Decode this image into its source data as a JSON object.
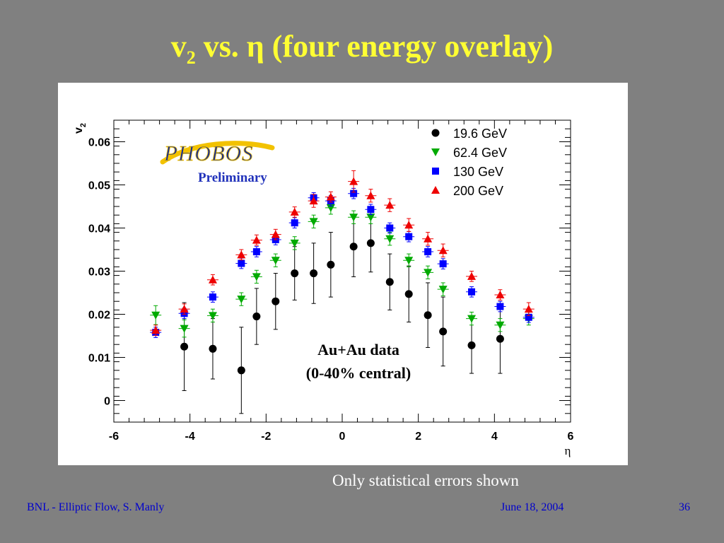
{
  "slide": {
    "title_v": "v",
    "title_sub": "2",
    "title_rest": " vs. η (four energy overlay)",
    "note": "Only statistical errors shown",
    "footer_left": "BNL - Elliptic Flow,  S. Manly",
    "footer_date": "June 18, 2004",
    "footer_page": "36"
  },
  "chart_data": {
    "type": "scatter",
    "title": "",
    "xlabel": "η",
    "ylabel": "v",
    "ylabel_sub": "2",
    "xlim": [
      -6,
      6
    ],
    "ylim": [
      -0.005,
      0.065
    ],
    "xticks": [
      -6,
      -4,
      -2,
      0,
      2,
      4,
      6
    ],
    "yticks": [
      0,
      0.01,
      0.02,
      0.03,
      0.04,
      0.05,
      0.06
    ],
    "ytick_labels": [
      "0",
      "0.01",
      "0.02",
      "0.03",
      "0.04",
      "0.05",
      "0.06"
    ],
    "grid": false,
    "legend_position": "top-right",
    "logo_text": "PHOBOS",
    "annotations": [
      "Preliminary",
      "Au+Au data",
      "(0-40% central)"
    ],
    "series": [
      {
        "name": "19.6 GeV",
        "marker": "circle",
        "color": "#000000",
        "points": [
          {
            "x": -4.15,
            "y": 0.0125,
            "err": 0.0102
          },
          {
            "x": -3.4,
            "y": 0.012,
            "err": 0.007
          },
          {
            "x": -2.65,
            "y": 0.007,
            "err": 0.01
          },
          {
            "x": -2.25,
            "y": 0.0195,
            "err": 0.0065
          },
          {
            "x": -1.75,
            "y": 0.023,
            "err": 0.0065
          },
          {
            "x": -1.25,
            "y": 0.0295,
            "err": 0.0062
          },
          {
            "x": -0.75,
            "y": 0.0295,
            "err": 0.007
          },
          {
            "x": -0.3,
            "y": 0.0315,
            "err": 0.0075
          },
          {
            "x": 0.3,
            "y": 0.0357,
            "err": 0.007
          },
          {
            "x": 0.75,
            "y": 0.0365,
            "err": 0.0067
          },
          {
            "x": 1.25,
            "y": 0.0275,
            "err": 0.0065
          },
          {
            "x": 1.75,
            "y": 0.0247,
            "err": 0.0065
          },
          {
            "x": 2.25,
            "y": 0.0198,
            "err": 0.0075
          },
          {
            "x": 2.65,
            "y": 0.016,
            "err": 0.008
          },
          {
            "x": 3.4,
            "y": 0.0128,
            "err": 0.0065
          },
          {
            "x": 4.15,
            "y": 0.0143,
            "err": 0.008
          }
        ]
      },
      {
        "name": "62.4 GeV",
        "marker": "triangle-down",
        "color": "#00aa00",
        "points": [
          {
            "x": -4.9,
            "y": 0.0198,
            "err": 0.0022
          },
          {
            "x": -4.15,
            "y": 0.0167,
            "err": 0.002
          },
          {
            "x": -3.4,
            "y": 0.0197,
            "err": 0.0015
          },
          {
            "x": -2.65,
            "y": 0.0235,
            "err": 0.0015
          },
          {
            "x": -2.25,
            "y": 0.0287,
            "err": 0.0015
          },
          {
            "x": -1.75,
            "y": 0.0325,
            "err": 0.0015
          },
          {
            "x": -1.25,
            "y": 0.0365,
            "err": 0.0015
          },
          {
            "x": -0.75,
            "y": 0.0415,
            "err": 0.0015
          },
          {
            "x": -0.3,
            "y": 0.0447,
            "err": 0.0015
          },
          {
            "x": 0.3,
            "y": 0.0425,
            "err": 0.0015
          },
          {
            "x": 0.75,
            "y": 0.0425,
            "err": 0.0015
          },
          {
            "x": 1.25,
            "y": 0.0375,
            "err": 0.0015
          },
          {
            "x": 1.75,
            "y": 0.0325,
            "err": 0.0015
          },
          {
            "x": 2.25,
            "y": 0.0297,
            "err": 0.0015
          },
          {
            "x": 2.65,
            "y": 0.0258,
            "err": 0.0015
          },
          {
            "x": 3.4,
            "y": 0.019,
            "err": 0.0015
          },
          {
            "x": 4.15,
            "y": 0.0175,
            "err": 0.0015
          },
          {
            "x": 4.9,
            "y": 0.019,
            "err": 0.0015
          }
        ]
      },
      {
        "name": "130 GeV",
        "marker": "square",
        "color": "#0000ff",
        "points": [
          {
            "x": -4.9,
            "y": 0.0158,
            "err": 0.0012
          },
          {
            "x": -4.15,
            "y": 0.0202,
            "err": 0.0012
          },
          {
            "x": -3.4,
            "y": 0.024,
            "err": 0.0012
          },
          {
            "x": -2.65,
            "y": 0.0318,
            "err": 0.0012
          },
          {
            "x": -2.25,
            "y": 0.0345,
            "err": 0.0012
          },
          {
            "x": -1.75,
            "y": 0.0373,
            "err": 0.0012
          },
          {
            "x": -1.25,
            "y": 0.0412,
            "err": 0.0012
          },
          {
            "x": -0.75,
            "y": 0.047,
            "err": 0.0012
          },
          {
            "x": -0.3,
            "y": 0.0463,
            "err": 0.0012
          },
          {
            "x": 0.3,
            "y": 0.048,
            "err": 0.0012
          },
          {
            "x": 0.75,
            "y": 0.0443,
            "err": 0.0012
          },
          {
            "x": 1.25,
            "y": 0.04,
            "err": 0.0012
          },
          {
            "x": 1.75,
            "y": 0.038,
            "err": 0.0012
          },
          {
            "x": 2.25,
            "y": 0.0345,
            "err": 0.0012
          },
          {
            "x": 2.65,
            "y": 0.0317,
            "err": 0.0012
          },
          {
            "x": 3.4,
            "y": 0.0252,
            "err": 0.0012
          },
          {
            "x": 4.15,
            "y": 0.0218,
            "err": 0.0012
          },
          {
            "x": 4.9,
            "y": 0.0193,
            "err": 0.0012
          }
        ]
      },
      {
        "name": "200 GeV",
        "marker": "triangle-up",
        "color": "#ee0000",
        "points": [
          {
            "x": -4.9,
            "y": 0.0163,
            "err": 0.0012
          },
          {
            "x": -4.15,
            "y": 0.0212,
            "err": 0.0012
          },
          {
            "x": -3.4,
            "y": 0.028,
            "err": 0.0012
          },
          {
            "x": -2.65,
            "y": 0.0338,
            "err": 0.0012
          },
          {
            "x": -2.25,
            "y": 0.0372,
            "err": 0.0012
          },
          {
            "x": -1.75,
            "y": 0.0385,
            "err": 0.0012
          },
          {
            "x": -1.25,
            "y": 0.0437,
            "err": 0.0012
          },
          {
            "x": -0.75,
            "y": 0.0463,
            "err": 0.0015
          },
          {
            "x": -0.3,
            "y": 0.0472,
            "err": 0.0012
          },
          {
            "x": 0.3,
            "y": 0.0508,
            "err": 0.0025
          },
          {
            "x": 0.75,
            "y": 0.0475,
            "err": 0.0015
          },
          {
            "x": 1.25,
            "y": 0.0453,
            "err": 0.0015
          },
          {
            "x": 1.75,
            "y": 0.0407,
            "err": 0.0015
          },
          {
            "x": 2.25,
            "y": 0.0375,
            "err": 0.0015
          },
          {
            "x": 2.65,
            "y": 0.0348,
            "err": 0.0015
          },
          {
            "x": 3.4,
            "y": 0.0288,
            "err": 0.0012
          },
          {
            "x": 4.15,
            "y": 0.0245,
            "err": 0.0012
          },
          {
            "x": 4.9,
            "y": 0.0212,
            "err": 0.0015
          }
        ]
      }
    ]
  }
}
